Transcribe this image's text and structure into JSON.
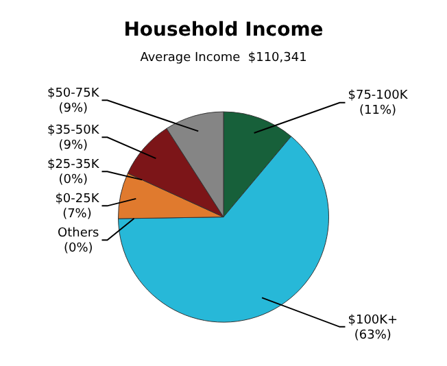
{
  "chart_data": {
    "type": "pie",
    "title": "Household Income",
    "subtitle": "Average Income  $110,341",
    "categories": [
      "$75-100K",
      "$100K+",
      "Others",
      "$0-25K",
      "$25-35K",
      "$35-50K",
      "$50-75K"
    ],
    "values": [
      11,
      63,
      0,
      7,
      0,
      9,
      9
    ],
    "value_labels": [
      "(11%)",
      "(63%)",
      "(0%)",
      "(7%)",
      "(0%)",
      "(9%)",
      "(9%)"
    ],
    "colors": [
      "#17603a",
      "#27b8d8",
      "#9e9e9e",
      "#e07a2e",
      "#c0c0c0",
      "#7c1518",
      "#858585"
    ]
  }
}
